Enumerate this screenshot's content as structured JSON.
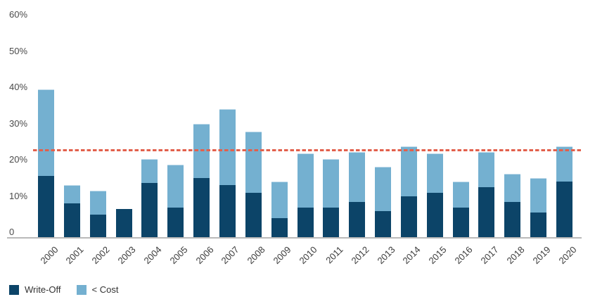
{
  "chart_data": {
    "type": "bar",
    "subtype": "stacked-vertical",
    "title": "",
    "xlabel": "",
    "ylabel": "",
    "categories": [
      "2000",
      "2001",
      "2002",
      "2003",
      "2004",
      "2005",
      "2006",
      "2007",
      "2008",
      "2009",
      "2010",
      "2011",
      "2012",
      "2013",
      "2014",
      "2015",
      "2016",
      "2017",
      "2018",
      "2019",
      "2020"
    ],
    "series": [
      {
        "name": "Write-Off",
        "color": "#0c4468",
        "values": [
          16.5,
          9,
          6,
          7.5,
          14.5,
          8,
          16,
          14,
          12,
          5,
          8,
          8,
          9.5,
          7,
          11,
          12,
          8,
          13.5,
          9.5,
          6.5,
          15
        ]
      },
      {
        "name": "< Cost",
        "color": "#74b0d0",
        "values": [
          23.5,
          5,
          6.5,
          0,
          6.5,
          11.5,
          14.5,
          20.5,
          16.5,
          10,
          14.5,
          13,
          13.5,
          12,
          13.5,
          10.5,
          7,
          9.5,
          7.5,
          9.5,
          9.5
        ]
      }
    ],
    "stacked_totals": [
      40,
      14,
      12.5,
      7.5,
      21,
      19.5,
      30.5,
      34.5,
      28.5,
      15,
      22.5,
      21,
      23,
      19,
      24.5,
      22.5,
      15,
      23,
      17,
      16,
      24.5
    ],
    "ylim": [
      0,
      62
    ],
    "yticks": [
      0,
      10,
      20,
      30,
      40,
      50,
      60
    ],
    "ytick_labels": [
      "0",
      "10%",
      "20%",
      "30%",
      "40%",
      "50%",
      "60%"
    ],
    "grid": "off",
    "reference_line": {
      "value": 23.5,
      "style": "dashed",
      "color": "#e2604c"
    },
    "axis_line_color": "#b9b9b9",
    "tick_label_color": "#4a4a4a",
    "x_tick_rotation_deg": -45,
    "legend_position": "bottom-left",
    "background_color": "#ffffff"
  }
}
